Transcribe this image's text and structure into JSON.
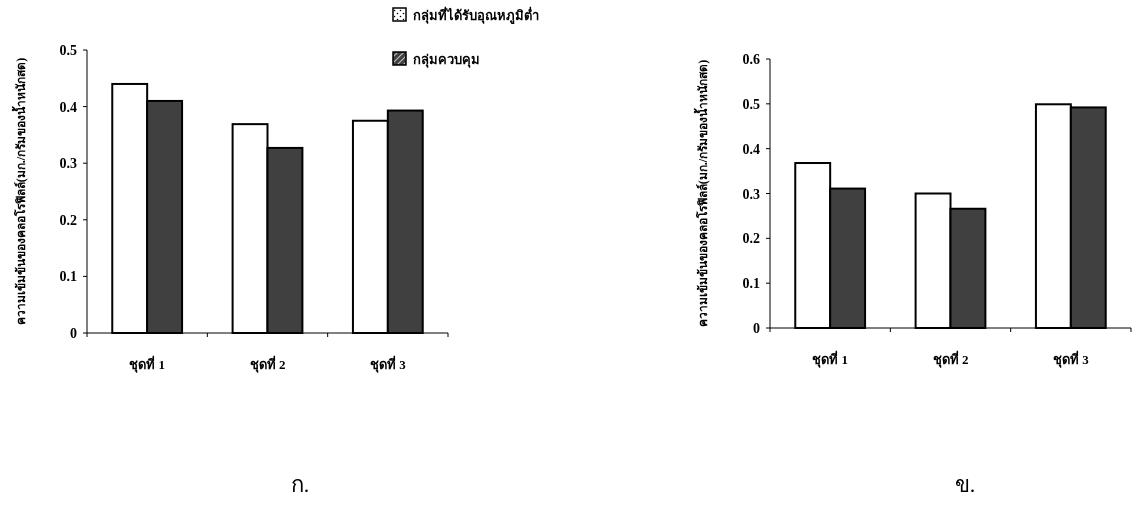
{
  "chart_data": [
    {
      "type": "bar",
      "ylabel": "ความเข้มข้นของคลอโรฟิลล์(มก./กรัมของน้ำหนักสด)",
      "categories": [
        "ชุดที่ 1",
        "ชุดที่ 2",
        "ชุดที่ 3"
      ],
      "series": [
        {
          "name": "กลุ่มที่ได้รับอุณหภูมิต่ำ",
          "color": "#ffffff",
          "values": [
            0.44,
            0.369,
            0.375
          ]
        },
        {
          "name": "กลุ่มควบคุม",
          "color": "#404040",
          "values": [
            0.41,
            0.327,
            0.393
          ]
        }
      ],
      "ylim": [
        0,
        0.5
      ],
      "yticks": [
        0,
        0.1,
        0.2,
        0.3,
        0.4,
        0.5
      ],
      "legend": "top right",
      "annotations": [
        "ก."
      ]
    },
    {
      "type": "bar",
      "ylabel": "ความเข้มข้นของคลอโรฟิลล์(มก./กรัมของน้ำหนักสด)",
      "categories": [
        "ชุดที่ 1",
        "ชุดที่ 2",
        "ชุดที่ 3"
      ],
      "series": [
        {
          "color": "#ffffff",
          "values": [
            0.368,
            0.3,
            0.499
          ]
        },
        {
          "color": "#404040",
          "values": [
            0.311,
            0.266,
            0.492
          ]
        }
      ],
      "ylim": [
        0,
        0.6
      ],
      "yticks": [
        0,
        0.1,
        0.2,
        0.3,
        0.4,
        0.5,
        0.6
      ],
      "annotations": [
        "ข."
      ]
    }
  ]
}
